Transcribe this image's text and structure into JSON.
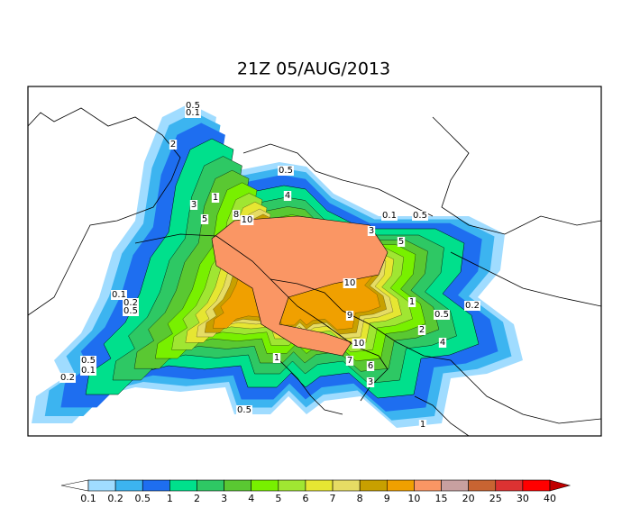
{
  "title": "21Z 05/AUG/2013",
  "colorbar": {
    "levels": [
      0.1,
      0.2,
      0.5,
      1,
      2,
      3,
      4,
      5,
      6,
      7,
      8,
      9,
      10,
      15,
      20,
      25,
      30,
      40
    ],
    "colors": [
      "#ffffff",
      "#a0dcff",
      "#3cb4f0",
      "#1e6ef0",
      "#00e08c",
      "#2ec864",
      "#5ac832",
      "#78f000",
      "#a0e632",
      "#e6e632",
      "#e6dc64",
      "#c8a000",
      "#f0a000",
      "#fa9664",
      "#c8a0a0",
      "#c86432",
      "#dc3232",
      "#ff0000",
      "#c00000"
    ]
  },
  "contour_labels": [
    "0.5",
    "0.1",
    "2",
    "1",
    "0.5",
    "4",
    "3",
    "5",
    "8",
    "10",
    "0.1",
    "0.5",
    "3",
    "5",
    "10",
    "9",
    "1",
    "0.5",
    "0.2",
    "2",
    "4",
    "0.1",
    "0.2",
    "0.5",
    "0.1",
    "0.5",
    "1",
    "0.5",
    "0.2",
    "7",
    "6",
    "3",
    "1",
    "10"
  ]
}
